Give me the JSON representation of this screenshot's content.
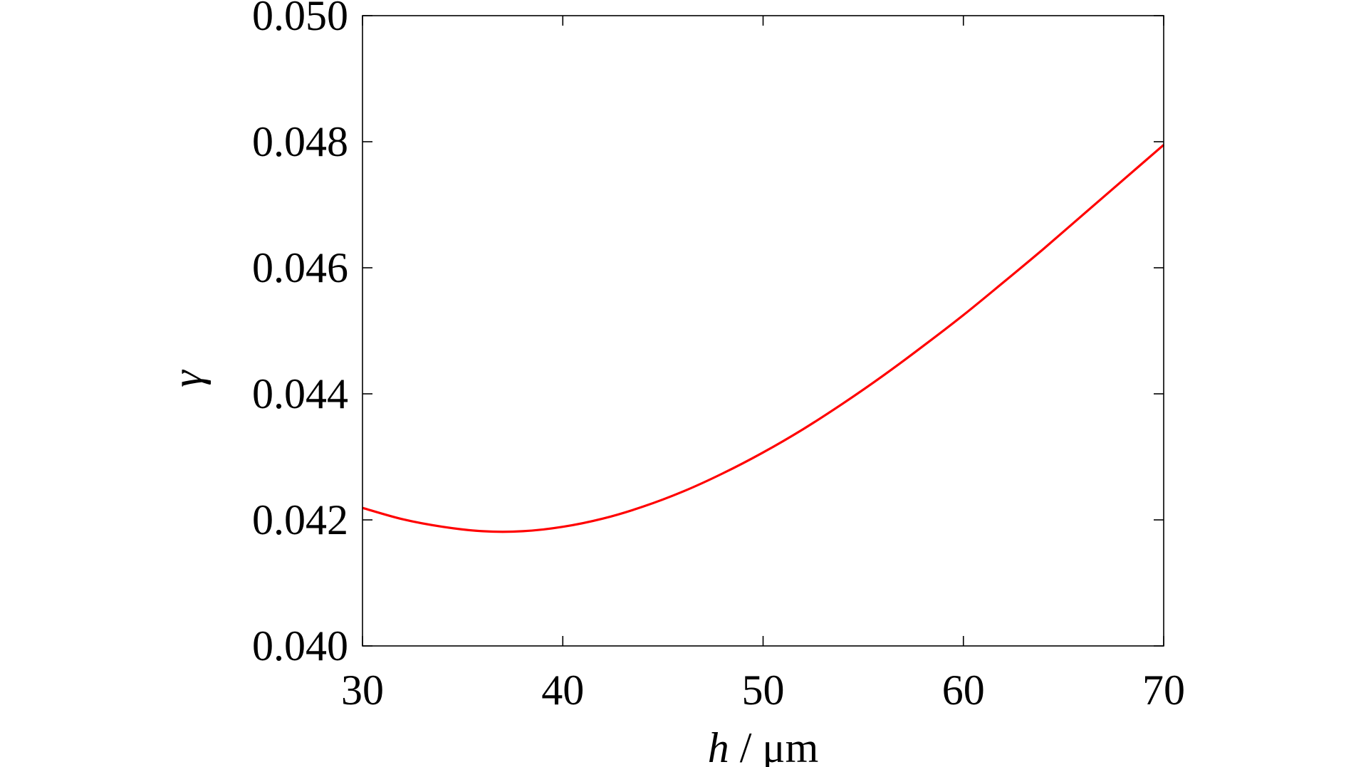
{
  "chart_data": {
    "type": "line",
    "title": "",
    "xlabel": {
      "symbol": "h",
      "rest": " / μm"
    },
    "ylabel": "γ",
    "xlim": [
      30,
      70
    ],
    "ylim": [
      0.04,
      0.05
    ],
    "x_ticks": [
      30,
      40,
      50,
      60,
      70
    ],
    "x_tick_labels": [
      "30",
      "40",
      "50",
      "60",
      "70"
    ],
    "y_ticks": [
      0.04,
      0.042,
      0.044,
      0.046,
      0.048,
      0.05
    ],
    "y_tick_labels": [
      "0.040",
      "0.042",
      "0.044",
      "0.046",
      "0.048",
      "0.050"
    ],
    "grid": false,
    "series": [
      {
        "color": "#ff0000",
        "x": [
          30,
          32,
          34,
          36,
          38,
          40,
          42,
          44,
          46,
          48,
          50,
          52,
          54,
          56,
          58,
          60,
          62,
          64,
          66,
          68,
          70
        ],
        "y": [
          0.04219,
          0.04201,
          0.04189,
          0.04182,
          0.04182,
          0.04189,
          0.04202,
          0.04221,
          0.04245,
          0.04274,
          0.04307,
          0.04344,
          0.04385,
          0.04429,
          0.04476,
          0.04525,
          0.04577,
          0.0463,
          0.04685,
          0.0474,
          0.04795
        ]
      }
    ]
  }
}
